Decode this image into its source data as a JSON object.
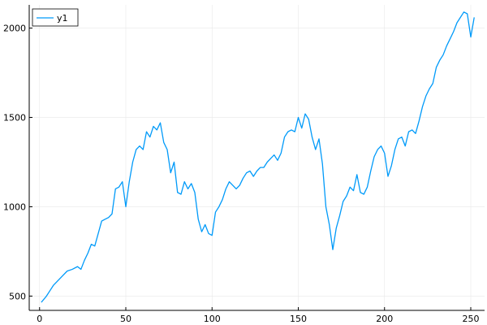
{
  "chart_data": {
    "type": "line",
    "title": "",
    "xlabel": "",
    "ylabel": "",
    "xlim": [
      -6,
      258
    ],
    "ylim": [
      420,
      2130
    ],
    "xticks": [
      0,
      50,
      100,
      150,
      200,
      250
    ],
    "yticks": [
      500,
      1000,
      1500,
      2000
    ],
    "xtick_labels": [
      "0",
      "50",
      "100",
      "150",
      "200",
      "250"
    ],
    "ytick_labels": [
      "500",
      "1000",
      "1500",
      "2000"
    ],
    "grid": true,
    "legend_position": "top-left",
    "colors": {
      "series": "#009af9",
      "axis": "#000000",
      "grid": "#e8e8e8"
    },
    "series": [
      {
        "name": "y1",
        "x": [
          1,
          4,
          6,
          8,
          10,
          13,
          16,
          19,
          22,
          24,
          26,
          28,
          30,
          32,
          34,
          36,
          38,
          40,
          42,
          44,
          46,
          48,
          50,
          52,
          54,
          56,
          58,
          60,
          62,
          64,
          66,
          68,
          70,
          72,
          74,
          76,
          78,
          80,
          82,
          84,
          86,
          88,
          90,
          92,
          94,
          96,
          98,
          100,
          102,
          104,
          106,
          108,
          110,
          112,
          114,
          116,
          118,
          120,
          122,
          124,
          126,
          128,
          130,
          132,
          134,
          136,
          138,
          140,
          142,
          144,
          146,
          148,
          150,
          152,
          154,
          156,
          158,
          160,
          162,
          164,
          166,
          168,
          170,
          172,
          174,
          176,
          178,
          180,
          182,
          184,
          186,
          188,
          190,
          192,
          194,
          196,
          198,
          200,
          202,
          204,
          206,
          208,
          210,
          212,
          214,
          216,
          218,
          220,
          222,
          224,
          226,
          228,
          230,
          232,
          234,
          236,
          238,
          240,
          242,
          244,
          246,
          248,
          250,
          252
        ],
        "values": [
          465,
          500,
          530,
          560,
          580,
          610,
          640,
          650,
          665,
          650,
          700,
          740,
          790,
          780,
          850,
          920,
          930,
          940,
          960,
          1100,
          1110,
          1140,
          1000,
          1140,
          1250,
          1320,
          1340,
          1320,
          1420,
          1390,
          1450,
          1430,
          1470,
          1360,
          1320,
          1190,
          1250,
          1080,
          1070,
          1140,
          1100,
          1130,
          1080,
          930,
          860,
          900,
          850,
          840,
          970,
          1000,
          1040,
          1100,
          1140,
          1120,
          1100,
          1120,
          1160,
          1190,
          1200,
          1170,
          1200,
          1220,
          1220,
          1250,
          1270,
          1290,
          1260,
          1300,
          1390,
          1420,
          1430,
          1420,
          1500,
          1440,
          1520,
          1490,
          1390,
          1320,
          1380,
          1240,
          1000,
          900,
          760,
          880,
          950,
          1030,
          1060,
          1110,
          1090,
          1180,
          1080,
          1070,
          1110,
          1200,
          1280,
          1320,
          1340,
          1300,
          1170,
          1230,
          1320,
          1380,
          1390,
          1340,
          1420,
          1430,
          1410,
          1480,
          1560,
          1620,
          1660,
          1690,
          1780,
          1820,
          1850,
          1900,
          1940,
          1980,
          2030,
          2060,
          2090,
          2080,
          1950,
          2060
        ]
      }
    ]
  }
}
